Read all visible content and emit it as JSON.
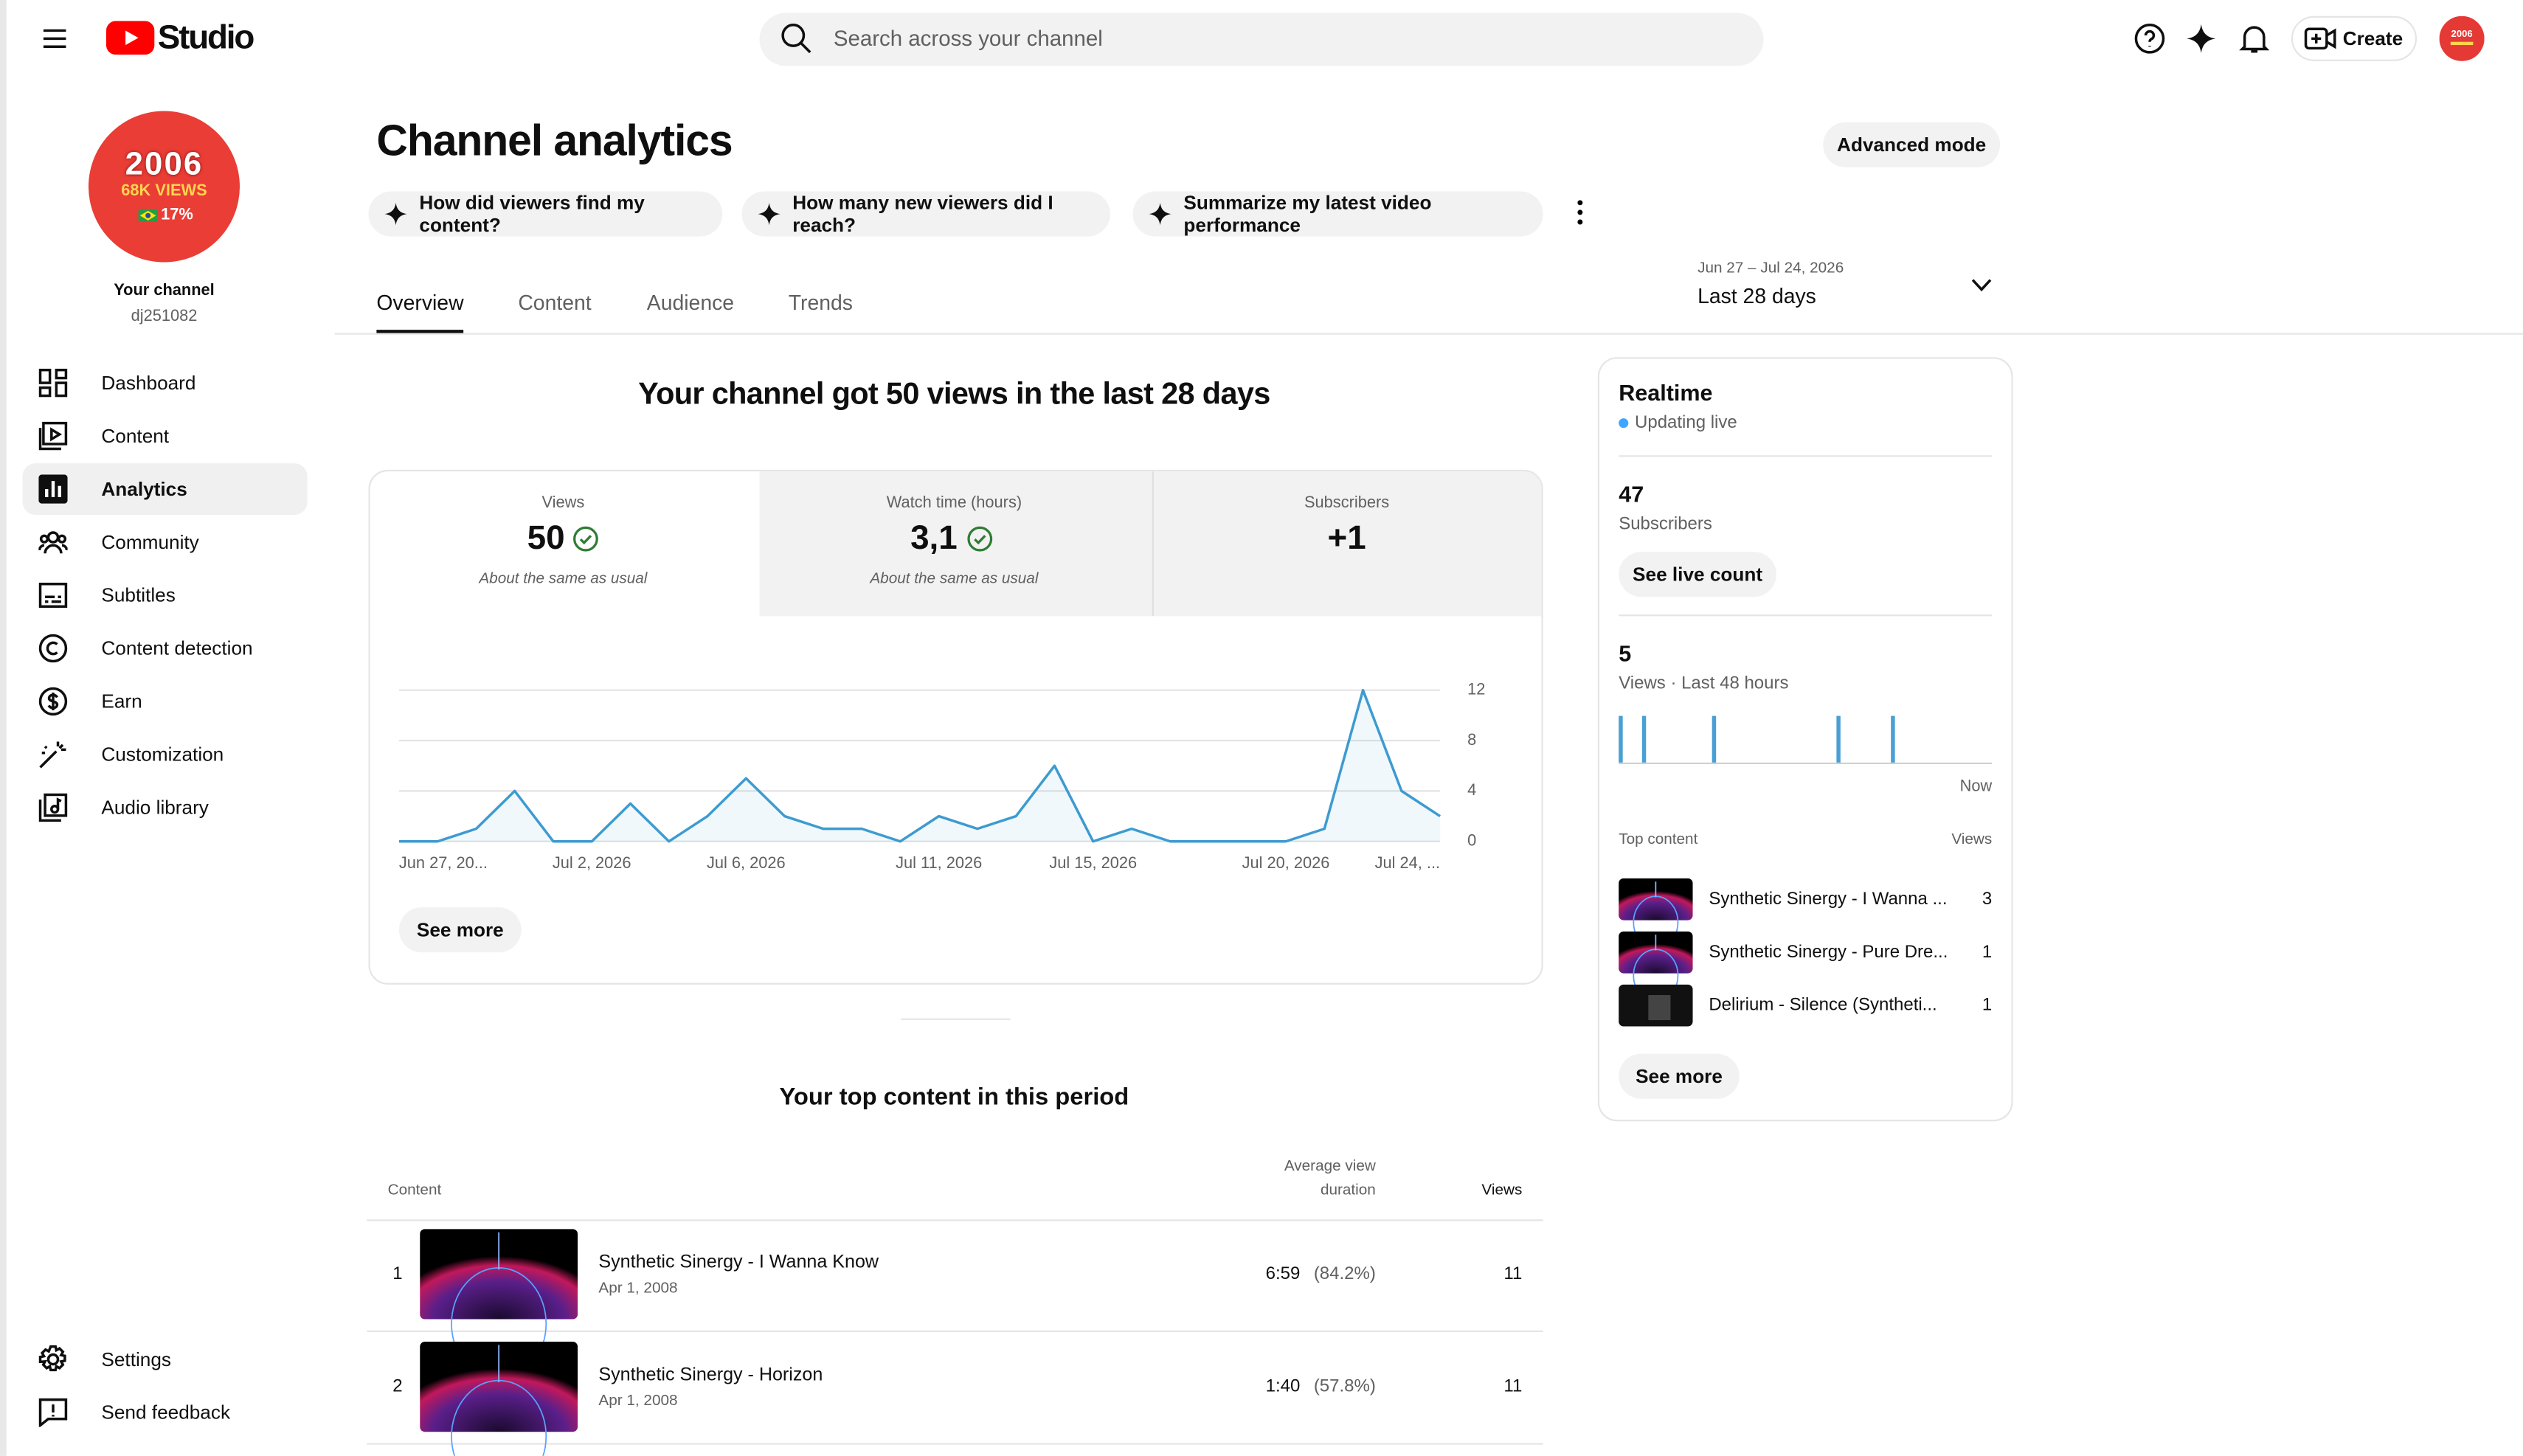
{
  "header": {
    "logo": "Studio",
    "search_placeholder": "Search across your channel",
    "create": "Create"
  },
  "sidebar": {
    "avatar": {
      "year": "2006",
      "views": "68K VIEWS",
      "percent": "17%"
    },
    "channel_label": "Your channel",
    "handle": "dj251082",
    "nav": [
      "Dashboard",
      "Content",
      "Analytics",
      "Community",
      "Subtitles",
      "Content detection",
      "Earn",
      "Customization",
      "Audio library"
    ],
    "bottom": [
      "Settings",
      "Send feedback"
    ]
  },
  "page": {
    "title": "Channel analytics",
    "advanced_mode": "Advanced mode",
    "suggestions": [
      "How did viewers find my content?",
      "How many new viewers did I reach?",
      "Summarize my latest video performance"
    ],
    "tabs": [
      "Overview",
      "Content",
      "Audience",
      "Trends"
    ],
    "date_range": "Jun 27 – Jul 24, 2026",
    "period": "Last 28 days"
  },
  "overview": {
    "headline": "Your channel got 50 views in the last 28 days",
    "metrics": [
      {
        "label": "Views",
        "value": "50",
        "note": "About the same as usual"
      },
      {
        "label": "Watch time (hours)",
        "value": "3,1",
        "note": "About the same as usual"
      },
      {
        "label": "Subscribers",
        "value": "+1"
      }
    ],
    "see_more": "See more"
  },
  "top_content": {
    "title": "Your top content in this period",
    "columns": [
      "Content",
      "Average view",
      "duration",
      "Views"
    ],
    "rows": [
      {
        "rank": "1",
        "title": "Synthetic Sinergy - I Wanna Know",
        "date": "Apr 1, 2008",
        "duration": "6:59",
        "percent": "(84.2%)",
        "views": "11"
      },
      {
        "rank": "2",
        "title": "Synthetic Sinergy - Horizon",
        "date": "Apr 1, 2008",
        "duration": "1:40",
        "percent": "(57.8%)",
        "views": "11"
      }
    ]
  },
  "realtime": {
    "title": "Realtime",
    "status": "Updating live",
    "subscribers": "47",
    "subscribers_label": "Subscribers",
    "see_live": "See live count",
    "views": "5",
    "views_label": "Views · Last 48 hours",
    "top_content_label": "Top content",
    "views_column": "Views",
    "items": [
      {
        "title": "Synthetic Sinergy - I Wanna ...",
        "views": "3"
      },
      {
        "title": "Synthetic Sinergy - Pure Dre...",
        "views": "1"
      },
      {
        "title": "Delirium - Silence (Syntheti...",
        "views": "1"
      }
    ],
    "see_more": "See more"
  },
  "chart_data": [
    {
      "type": "line",
      "color": "#3d9bd0",
      "grid": true,
      "categories": [
        "Jun 27, 20...",
        null,
        null,
        null,
        null,
        "Jul 2, 2026",
        null,
        null,
        null,
        "Jul 6, 2026",
        null,
        null,
        null,
        null,
        "Jul 11, 2026",
        null,
        null,
        null,
        "Jul 15, 2026",
        null,
        null,
        null,
        null,
        "Jul 20, 2026",
        null,
        null,
        null,
        "Jul 24, ..."
      ],
      "values": [
        0,
        0,
        1,
        4,
        0,
        0,
        3,
        0,
        2,
        5,
        2,
        1,
        1,
        0,
        2,
        1,
        2,
        6,
        0,
        1,
        0,
        0,
        0,
        0,
        1,
        12,
        4,
        2
      ],
      "ylim": [
        0,
        12
      ],
      "yticks": [
        0,
        4,
        8,
        12
      ]
    },
    {
      "type": "bar",
      "color": "#4a9fd4",
      "categories": [
        null,
        null,
        null,
        null,
        null,
        null,
        null,
        null,
        null,
        null,
        null,
        null,
        null,
        null,
        null,
        null,
        null,
        null,
        null,
        null,
        null,
        null,
        null,
        null,
        null,
        null,
        null,
        null,
        null,
        null,
        null,
        null,
        null,
        null,
        null,
        null,
        null,
        null,
        null,
        null,
        null,
        null,
        null,
        null,
        null,
        null,
        null,
        "Now"
      ],
      "values": [
        1,
        0,
        0,
        1,
        0,
        0,
        0,
        0,
        0,
        0,
        0,
        0,
        1,
        0,
        0,
        0,
        0,
        0,
        0,
        0,
        0,
        0,
        0,
        0,
        0,
        0,
        0,
        0,
        1,
        0,
        0,
        0,
        0,
        0,
        0,
        1,
        0,
        0,
        0,
        0,
        0,
        0,
        0,
        0,
        0,
        0,
        0,
        0
      ]
    }
  ]
}
